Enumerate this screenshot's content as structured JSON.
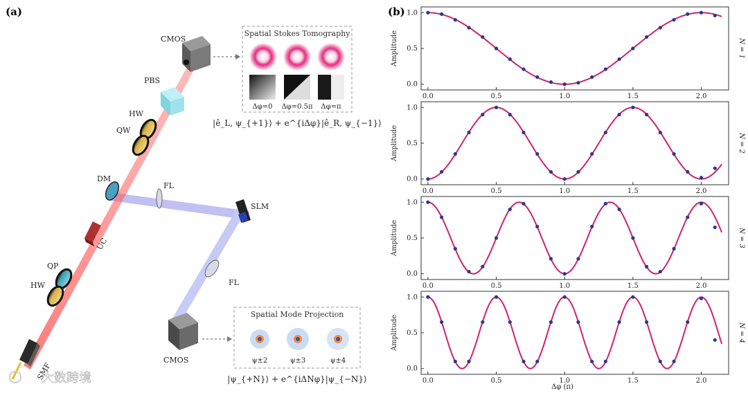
{
  "left_panel": {
    "label": "(a)",
    "components": {
      "cmos_top": "CMOS",
      "pbs": "PBS",
      "hw_top": "HW",
      "qw": "QW",
      "dm": "DM",
      "fl_top": "FL",
      "slm": "SLM",
      "uc": "UC",
      "fl_bottom": "FL",
      "qp": "QP",
      "hw_bottom": "HW",
      "smf": "SMF",
      "cmos_bottom": "CMOS"
    },
    "tomography_box": {
      "title": "Spatial Stokes Tomography",
      "phases": [
        "Δφ=0",
        "Δφ=0.5π",
        "Δφ=π"
      ],
      "equation": "|ê_L, ψ_{+1}⟩ + e^{iΔφ}|ê_R, ψ_{−1}⟩"
    },
    "projection_box": {
      "title": "Spatial Mode Projection",
      "modes": [
        "ψ±2",
        "ψ±3",
        "ψ±4"
      ],
      "equation": "|ψ_{+N}⟩ + e^{iΔNφ}|ψ_{−N}⟩"
    },
    "watermark": "大数跨境"
  },
  "right_panel": {
    "label": "(b)",
    "xlabel": "Δφ (π)",
    "ylabel": "Amplitude",
    "colors": {
      "curve": "#d0206e",
      "points": "#2a3a8c"
    }
  },
  "chart_data": [
    {
      "type": "line",
      "side_label": "N = 1",
      "N": 1,
      "xlim": [
        -0.05,
        2.2
      ],
      "ylim": [
        -0.08,
        1.08
      ],
      "xticks": [
        0.0,
        0.5,
        1.0,
        1.5,
        2.0
      ],
      "yticks": [
        0.0,
        0.5,
        1.0
      ],
      "series": [
        {
          "values_x": [
            0,
            0.1,
            0.2,
            0.3,
            0.4,
            0.5,
            0.6,
            0.7,
            0.8,
            0.9,
            1.0,
            1.1,
            1.2,
            1.3,
            1.4,
            1.5,
            1.6,
            1.7,
            1.8,
            1.9,
            2.0,
            2.1
          ],
          "values_y": [
            1.0,
            0.98,
            0.9,
            0.79,
            0.66,
            0.5,
            0.35,
            0.21,
            0.1,
            0.03,
            0.0,
            0.02,
            0.1,
            0.21,
            0.35,
            0.5,
            0.66,
            0.79,
            0.9,
            0.98,
            1.0,
            0.96
          ]
        }
      ]
    },
    {
      "type": "line",
      "side_label": "N = 2",
      "N": 2,
      "xlim": [
        -0.05,
        2.2
      ],
      "ylim": [
        -0.08,
        1.08
      ],
      "xticks": [
        0.0,
        0.5,
        1.0,
        1.5,
        2.0
      ],
      "yticks": [
        0.0,
        0.5,
        1.0
      ],
      "series": [
        {
          "values_x": [
            0,
            0.1,
            0.2,
            0.3,
            0.4,
            0.5,
            0.6,
            0.7,
            0.8,
            0.9,
            1.0,
            1.1,
            1.2,
            1.3,
            1.4,
            1.5,
            1.6,
            1.7,
            1.8,
            1.9,
            2.0,
            2.1
          ],
          "values_y": [
            0.0,
            0.1,
            0.35,
            0.65,
            0.9,
            1.0,
            0.9,
            0.65,
            0.35,
            0.1,
            0.0,
            0.1,
            0.35,
            0.65,
            0.9,
            1.0,
            0.9,
            0.65,
            0.35,
            0.1,
            0.02,
            0.15
          ]
        }
      ]
    },
    {
      "type": "line",
      "side_label": "N = 3",
      "N": 3,
      "xlim": [
        -0.05,
        2.2
      ],
      "ylim": [
        -0.08,
        1.08
      ],
      "xticks": [
        0.0,
        0.5,
        1.0,
        1.5,
        2.0
      ],
      "yticks": [
        0.0,
        0.5,
        1.0
      ],
      "series": [
        {
          "values_x": [
            0,
            0.1,
            0.2,
            0.3,
            0.4,
            0.5,
            0.6,
            0.7,
            0.8,
            0.9,
            1.0,
            1.1,
            1.2,
            1.3,
            1.4,
            1.5,
            1.6,
            1.7,
            1.8,
            1.9,
            2.0,
            2.1
          ],
          "values_y": [
            1.0,
            0.79,
            0.35,
            0.03,
            0.1,
            0.5,
            0.9,
            0.98,
            0.66,
            0.21,
            0.0,
            0.21,
            0.66,
            0.98,
            0.9,
            0.5,
            0.1,
            0.03,
            0.35,
            0.79,
            0.98,
            0.65
          ]
        }
      ]
    },
    {
      "type": "line",
      "side_label": "N = 4",
      "N": 4,
      "xlim": [
        -0.05,
        2.2
      ],
      "ylim": [
        -0.08,
        1.08
      ],
      "xticks": [
        0.0,
        0.5,
        1.0,
        1.5,
        2.0
      ],
      "yticks": [
        0.0,
        0.5,
        1.0
      ],
      "series": [
        {
          "values_x": [
            0,
            0.1,
            0.2,
            0.3,
            0.4,
            0.5,
            0.6,
            0.7,
            0.8,
            0.9,
            1.0,
            1.1,
            1.2,
            1.3,
            1.4,
            1.5,
            1.6,
            1.7,
            1.8,
            1.9,
            2.0,
            2.1
          ],
          "values_y": [
            1.0,
            0.65,
            0.1,
            0.1,
            0.65,
            1.0,
            0.65,
            0.1,
            0.1,
            0.65,
            1.0,
            0.65,
            0.1,
            0.1,
            0.65,
            1.0,
            0.65,
            0.1,
            0.1,
            0.65,
            0.98,
            0.4
          ]
        }
      ]
    }
  ]
}
